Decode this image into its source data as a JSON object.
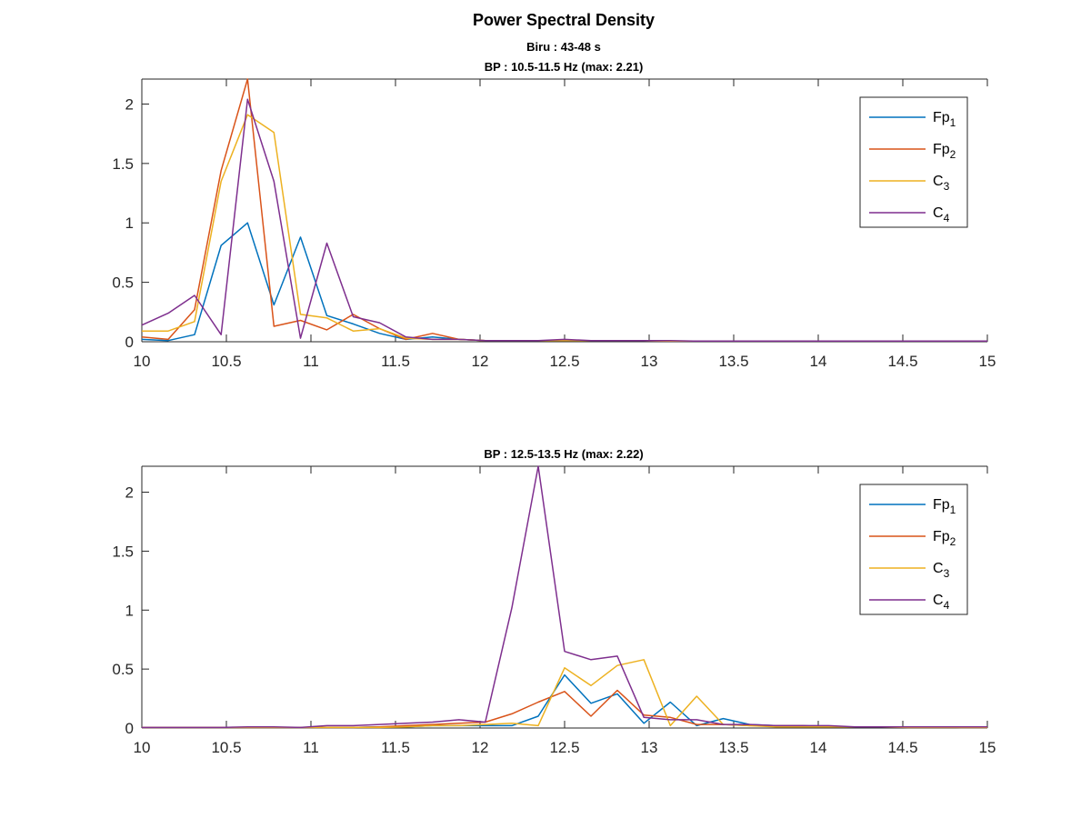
{
  "figure": {
    "title": "Power Spectral Density",
    "subtitle": "Biru : 43-48 s"
  },
  "colors": {
    "Fp1": "#0072BD",
    "Fp2": "#D95319",
    "C3": "#EDB120",
    "C4": "#7E2F8E"
  },
  "chart_data": [
    {
      "type": "line",
      "title": "BP : 10.5-11.5 Hz (max: 2.21)",
      "xlabel": "",
      "ylabel": "",
      "xlim": [
        10,
        15
      ],
      "ylim": [
        0,
        2.21
      ],
      "xticks": [
        "10",
        "10.5",
        "11",
        "11.5",
        "12",
        "12.5",
        "13",
        "13.5",
        "14",
        "14.5",
        "15"
      ],
      "yticks": [
        "0",
        "0.5",
        "1",
        "1.5",
        "2"
      ],
      "legend_position": "top-right",
      "x": [
        10,
        10.156,
        10.312,
        10.469,
        10.625,
        10.781,
        10.938,
        11.094,
        11.25,
        11.406,
        11.562,
        11.719,
        11.875,
        12.031,
        12.188,
        12.344,
        12.5,
        12.656,
        12.812,
        12.969,
        13.125,
        13.281,
        13.438,
        13.594,
        13.75,
        13.906,
        14.062,
        14.219,
        14.375,
        14.531,
        14.688,
        14.844,
        15
      ],
      "series": [
        {
          "name": "Fp1",
          "sub": "1",
          "base": "Fp",
          "color_key": "Fp1",
          "values": [
            0.02,
            0.01,
            0.06,
            0.81,
            1.0,
            0.31,
            0.88,
            0.22,
            0.15,
            0.07,
            0.02,
            0.04,
            0.02,
            0.01,
            0.01,
            0.01,
            0.01,
            0.01,
            0.01,
            0.01,
            0.005,
            0.005,
            0.005,
            0.005,
            0.005,
            0.005,
            0.005,
            0.005,
            0.005,
            0.005,
            0.005,
            0.005,
            0.005
          ]
        },
        {
          "name": "Fp2",
          "sub": "2",
          "base": "Fp",
          "color_key": "Fp2",
          "values": [
            0.04,
            0.02,
            0.27,
            1.44,
            2.21,
            0.13,
            0.18,
            0.1,
            0.23,
            0.11,
            0.02,
            0.07,
            0.02,
            0.01,
            0.01,
            0.01,
            0.01,
            0.01,
            0.01,
            0.01,
            0.005,
            0.005,
            0.005,
            0.005,
            0.005,
            0.005,
            0.005,
            0.005,
            0.005,
            0.005,
            0.005,
            0.005,
            0.005
          ]
        },
        {
          "name": "C3",
          "sub": "3",
          "base": "C",
          "color_key": "C3",
          "values": [
            0.09,
            0.09,
            0.17,
            1.35,
            1.91,
            1.76,
            0.23,
            0.2,
            0.09,
            0.11,
            0.03,
            0.02,
            0.02,
            0.01,
            0.01,
            0.01,
            0.01,
            0.01,
            0.01,
            0.01,
            0.005,
            0.005,
            0.005,
            0.005,
            0.005,
            0.005,
            0.005,
            0.005,
            0.005,
            0.005,
            0.005,
            0.005,
            0.005
          ]
        },
        {
          "name": "C4",
          "sub": "4",
          "base": "C",
          "color_key": "C4",
          "values": [
            0.14,
            0.24,
            0.39,
            0.06,
            2.04,
            1.35,
            0.03,
            0.83,
            0.21,
            0.16,
            0.04,
            0.02,
            0.02,
            0.01,
            0.01,
            0.01,
            0.02,
            0.01,
            0.01,
            0.01,
            0.01,
            0.005,
            0.005,
            0.005,
            0.005,
            0.005,
            0.005,
            0.005,
            0.005,
            0.005,
            0.005,
            0.005,
            0.005
          ]
        }
      ]
    },
    {
      "type": "line",
      "title": "BP : 12.5-13.5 Hz (max: 2.22)",
      "xlabel": "",
      "ylabel": "",
      "xlim": [
        10,
        15
      ],
      "ylim": [
        0,
        2.22
      ],
      "xticks": [
        "10",
        "10.5",
        "11",
        "11.5",
        "12",
        "12.5",
        "13",
        "13.5",
        "14",
        "14.5",
        "15"
      ],
      "yticks": [
        "0",
        "0.5",
        "1",
        "1.5",
        "2"
      ],
      "legend_position": "top-right",
      "x": [
        10,
        10.156,
        10.312,
        10.469,
        10.625,
        10.781,
        10.938,
        11.094,
        11.25,
        11.406,
        11.562,
        11.719,
        11.875,
        12.031,
        12.188,
        12.344,
        12.5,
        12.656,
        12.812,
        12.969,
        13.125,
        13.281,
        13.438,
        13.594,
        13.75,
        13.906,
        14.062,
        14.219,
        14.375,
        14.531,
        14.688,
        14.844,
        15
      ],
      "series": [
        {
          "name": "Fp1",
          "sub": "1",
          "base": "Fp",
          "color_key": "Fp1",
          "values": [
            0.005,
            0.005,
            0.005,
            0.005,
            0.005,
            0.005,
            0.005,
            0.005,
            0.005,
            0.01,
            0.01,
            0.02,
            0.02,
            0.02,
            0.02,
            0.1,
            0.45,
            0.21,
            0.29,
            0.04,
            0.22,
            0.02,
            0.08,
            0.03,
            0.02,
            0.02,
            0.01,
            0.01,
            0.01,
            0.01,
            0.01,
            0.005,
            0.005
          ]
        },
        {
          "name": "Fp2",
          "sub": "2",
          "base": "Fp",
          "color_key": "Fp2",
          "values": [
            0.005,
            0.005,
            0.005,
            0.005,
            0.005,
            0.005,
            0.005,
            0.005,
            0.005,
            0.01,
            0.02,
            0.03,
            0.04,
            0.05,
            0.12,
            0.22,
            0.31,
            0.1,
            0.32,
            0.11,
            0.09,
            0.03,
            0.03,
            0.02,
            0.02,
            0.02,
            0.01,
            0.01,
            0.01,
            0.01,
            0.01,
            0.005,
            0.005
          ]
        },
        {
          "name": "C3",
          "sub": "3",
          "base": "C",
          "color_key": "C3",
          "values": [
            0.005,
            0.005,
            0.005,
            0.005,
            0.005,
            0.005,
            0.005,
            0.005,
            0.005,
            0.005,
            0.01,
            0.02,
            0.02,
            0.03,
            0.04,
            0.02,
            0.51,
            0.36,
            0.53,
            0.58,
            0.02,
            0.27,
            0.03,
            0.02,
            0.01,
            0.01,
            0.01,
            0.01,
            0.01,
            0.005,
            0.005,
            0.005,
            0.005
          ]
        },
        {
          "name": "C4",
          "sub": "4",
          "base": "C",
          "color_key": "C4",
          "values": [
            0.005,
            0.005,
            0.005,
            0.005,
            0.01,
            0.01,
            0.005,
            0.02,
            0.02,
            0.03,
            0.04,
            0.05,
            0.07,
            0.05,
            1.02,
            2.22,
            0.65,
            0.58,
            0.61,
            0.09,
            0.07,
            0.07,
            0.03,
            0.03,
            0.02,
            0.02,
            0.02,
            0.01,
            0.01,
            0.01,
            0.01,
            0.01,
            0.01
          ]
        }
      ]
    }
  ]
}
